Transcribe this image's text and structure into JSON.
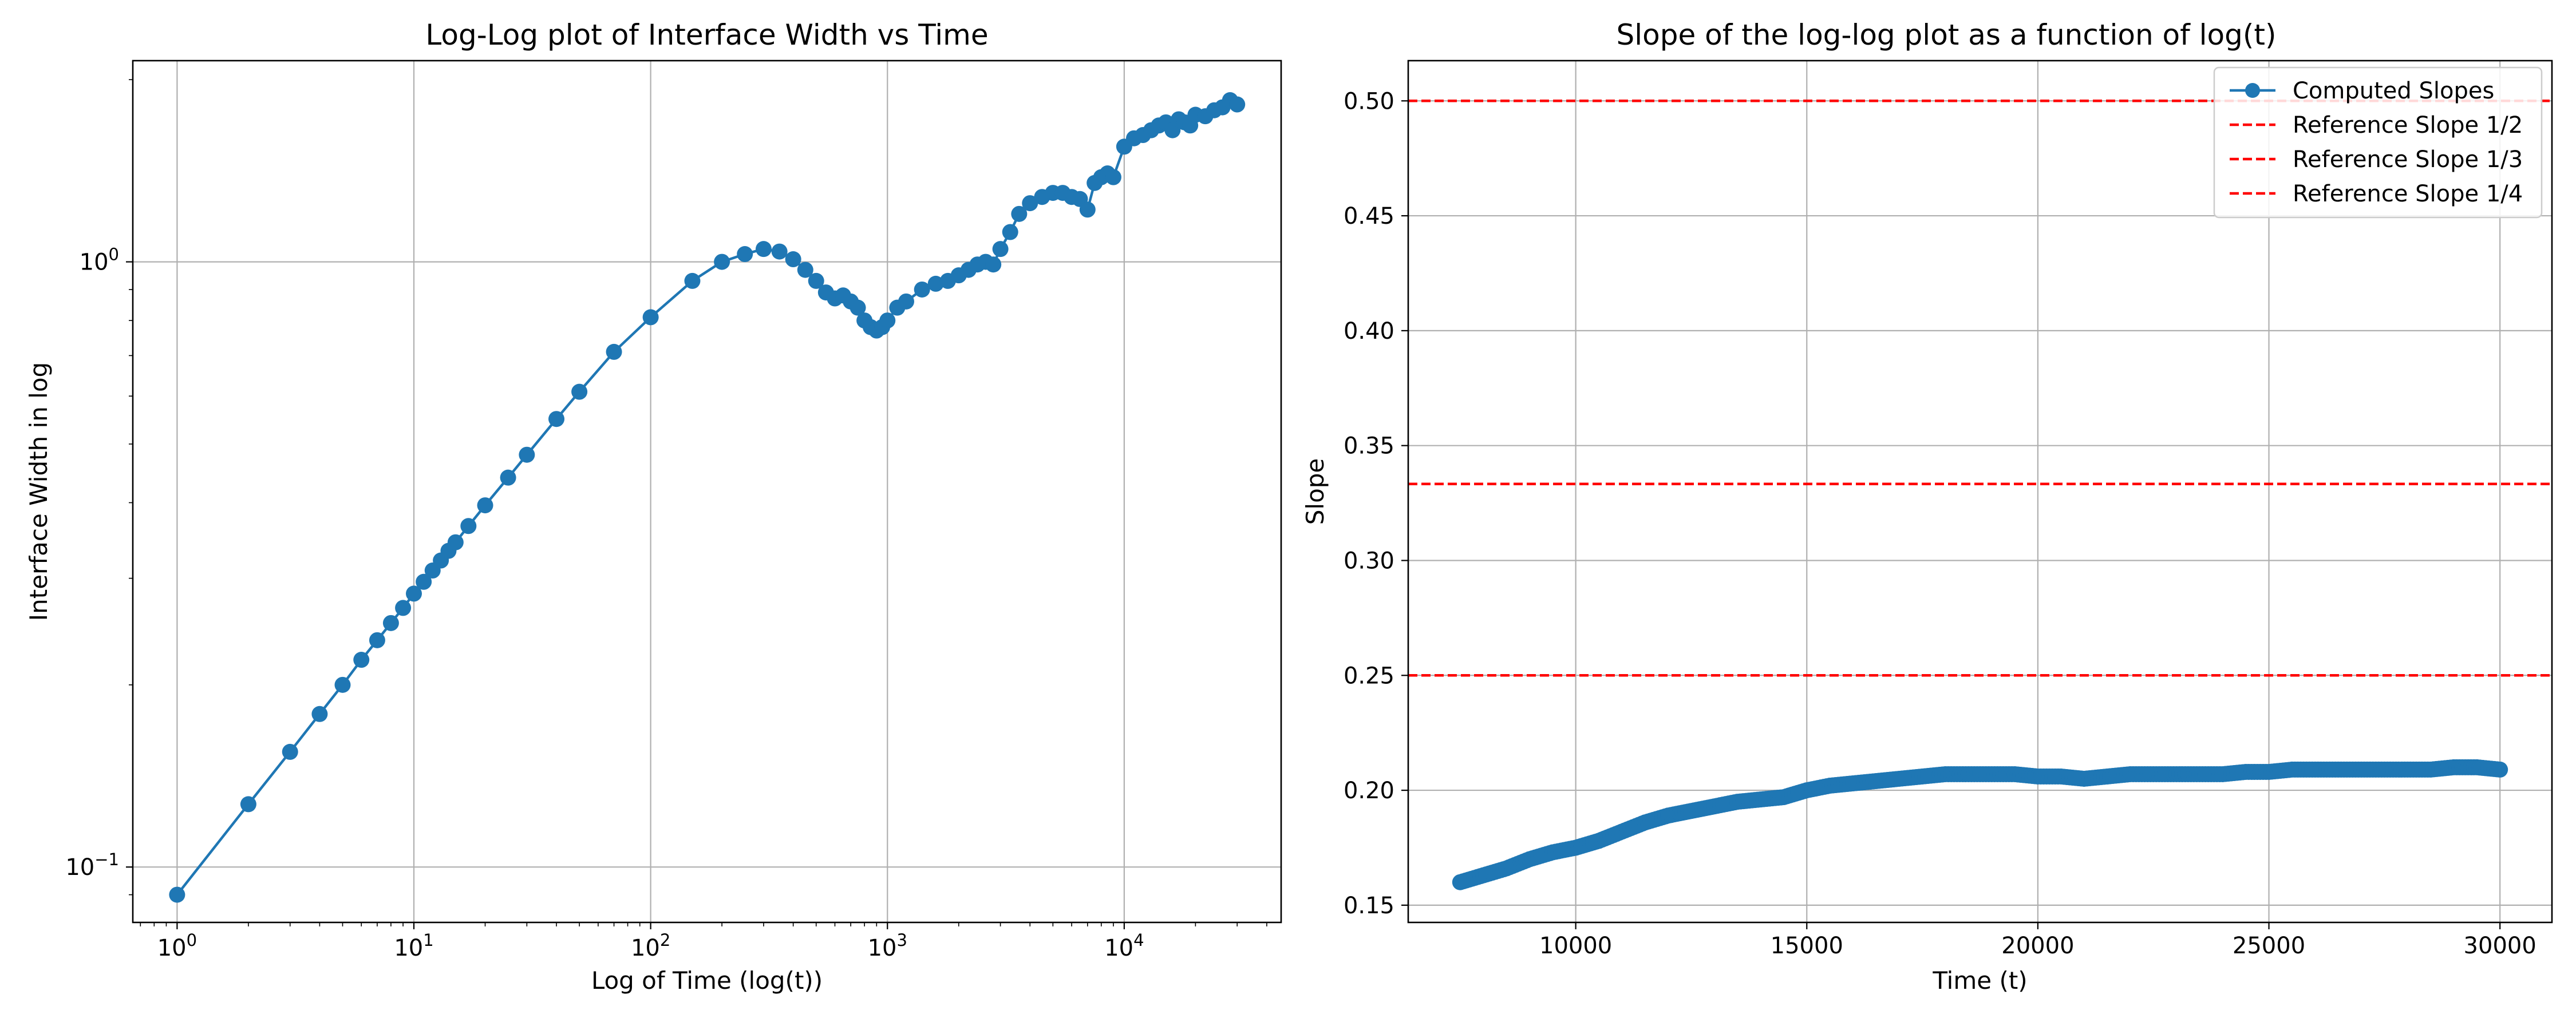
{
  "chart_data": [
    {
      "type": "line",
      "title": "Log-Log plot of Interface Width vs Time",
      "xlabel": "Log of Time (log(t))",
      "ylabel": "Interface Width in log",
      "xscale": "log",
      "yscale": "log",
      "xlim": [
        0.65,
        46000
      ],
      "ylim": [
        0.081,
        2.15
      ],
      "grid": true,
      "color": "#1f77b4",
      "xticks": [
        {
          "base": "10",
          "exp": "0",
          "value": 1
        },
        {
          "base": "10",
          "exp": "1",
          "value": 10
        },
        {
          "base": "10",
          "exp": "2",
          "value": 100
        },
        {
          "base": "10",
          "exp": "3",
          "value": 1000
        },
        {
          "base": "10",
          "exp": "4",
          "value": 10000
        }
      ],
      "yticks": [
        {
          "base": "10",
          "exp": "−1",
          "value": 0.1
        },
        {
          "base": "10",
          "exp": "0",
          "value": 1
        }
      ],
      "series": [
        {
          "marker": "o",
          "x": [
            1,
            2,
            3,
            4,
            5,
            6,
            7,
            8,
            9,
            10,
            11,
            12,
            13,
            14,
            15,
            17,
            20,
            25,
            30,
            40,
            50,
            70,
            100,
            150,
            200,
            250,
            300,
            350,
            400,
            450,
            500,
            550,
            600,
            650,
            700,
            750,
            800,
            850,
            900,
            950,
            1000,
            1100,
            1200,
            1400,
            1600,
            1800,
            2000,
            2200,
            2400,
            2600,
            2800,
            3000,
            3300,
            3600,
            4000,
            4500,
            5000,
            5500,
            6000,
            6500,
            7000,
            7500,
            8000,
            8500,
            9000,
            10000,
            11000,
            12000,
            13000,
            14000,
            15000,
            16000,
            17000,
            18000,
            19000,
            20000,
            22000,
            24000,
            26000,
            28000,
            30000
          ],
          "y": [
            0.09,
            0.127,
            0.155,
            0.179,
            0.2,
            0.22,
            0.237,
            0.253,
            0.268,
            0.283,
            0.296,
            0.309,
            0.321,
            0.333,
            0.344,
            0.366,
            0.396,
            0.44,
            0.48,
            0.55,
            0.61,
            0.71,
            0.81,
            0.93,
            1.0,
            1.03,
            1.05,
            1.04,
            1.01,
            0.97,
            0.93,
            0.89,
            0.87,
            0.88,
            0.86,
            0.84,
            0.8,
            0.78,
            0.77,
            0.78,
            0.8,
            0.84,
            0.86,
            0.9,
            0.92,
            0.93,
            0.95,
            0.97,
            0.99,
            1.0,
            0.99,
            1.05,
            1.12,
            1.2,
            1.25,
            1.28,
            1.3,
            1.3,
            1.28,
            1.27,
            1.22,
            1.35,
            1.38,
            1.4,
            1.38,
            1.55,
            1.6,
            1.62,
            1.65,
            1.68,
            1.7,
            1.65,
            1.72,
            1.7,
            1.68,
            1.75,
            1.74,
            1.78,
            1.8,
            1.85,
            1.82
          ]
        }
      ]
    },
    {
      "type": "line",
      "title": "Slope of the log-log plot as a function of log(t)",
      "xlabel": "Time (t)",
      "ylabel": "Slope",
      "xlim": [
        6375,
        31125
      ],
      "ylim": [
        0.1425,
        0.5175
      ],
      "grid": true,
      "legend_position": "top-right",
      "xticks": [
        10000,
        15000,
        20000,
        25000,
        30000
      ],
      "xtick_labels": [
        "10000",
        "15000",
        "20000",
        "25000",
        "30000"
      ],
      "yticks": [
        0.15,
        0.2,
        0.25,
        0.3,
        0.35,
        0.4,
        0.45,
        0.5
      ],
      "ytick_labels": [
        "0.15",
        "0.20",
        "0.25",
        "0.30",
        "0.35",
        "0.40",
        "0.45",
        "0.50"
      ],
      "series": [
        {
          "name": "Computed Slopes",
          "marker": "o",
          "color": "#1f77b4",
          "x": [
            7500,
            8000,
            8500,
            9000,
            9500,
            10000,
            10500,
            11000,
            11500,
            12000,
            12500,
            13000,
            13500,
            14000,
            14500,
            15000,
            15500,
            16000,
            16500,
            17000,
            17500,
            18000,
            18500,
            19000,
            19500,
            20000,
            20500,
            21000,
            21500,
            22000,
            22500,
            23000,
            23500,
            24000,
            24500,
            25000,
            25500,
            26000,
            26500,
            27000,
            27500,
            28000,
            28500,
            29000,
            29500,
            30000
          ],
          "y": [
            0.16,
            0.163,
            0.166,
            0.17,
            0.173,
            0.175,
            0.178,
            0.182,
            0.186,
            0.189,
            0.191,
            0.193,
            0.195,
            0.196,
            0.197,
            0.2,
            0.202,
            0.203,
            0.204,
            0.205,
            0.206,
            0.207,
            0.207,
            0.207,
            0.207,
            0.206,
            0.206,
            0.205,
            0.206,
            0.207,
            0.207,
            0.207,
            0.207,
            0.207,
            0.208,
            0.208,
            0.209,
            0.209,
            0.209,
            0.209,
            0.209,
            0.209,
            0.209,
            0.21,
            0.21,
            0.209
          ]
        },
        {
          "name": "Reference Slope 1/2",
          "style": "dashed",
          "color": "#ff0000",
          "hline": 0.5
        },
        {
          "name": "Reference Slope 1/3",
          "style": "dashed",
          "color": "#ff0000",
          "hline": 0.3333
        },
        {
          "name": "Reference Slope 1/4",
          "style": "dashed",
          "color": "#ff0000",
          "hline": 0.25
        }
      ]
    }
  ]
}
